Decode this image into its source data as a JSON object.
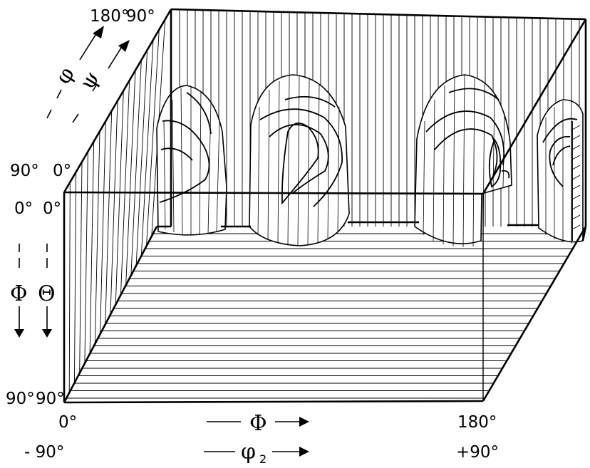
{
  "labels": {
    "top_phi1_max": "180°",
    "top_psi_max": "90°",
    "top_axis_phi1": "φ",
    "top_axis_psi": "ψ",
    "back_left_phi_top": "90°",
    "back_left_theta_top": "0°",
    "front_left_phi_top": "0°",
    "front_left_theta_top": "0°",
    "left_axis_phi": "Φ",
    "left_axis_theta": "Θ",
    "bottom_left_phi": "90°",
    "bottom_left_theta": "90°",
    "bottom_x_phi_min": "0°",
    "bottom_x_phi2_min": "- 90°",
    "bottom_axis_phi": "Φ",
    "bottom_axis_phi2": "φ",
    "bottom_axis_phi2_sub": "2",
    "bottom_x_phi_max": "180°",
    "bottom_x_phi2_max": "+90°"
  }
}
